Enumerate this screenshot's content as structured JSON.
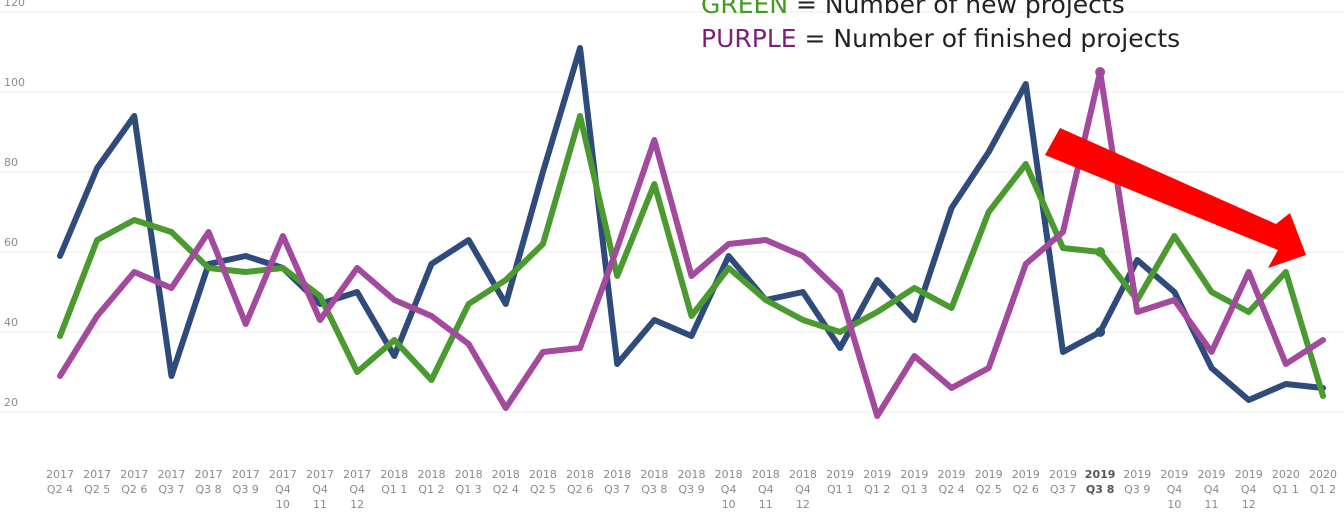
{
  "chart_data": {
    "type": "line",
    "categories": [
      [
        "2017",
        "Q2 4"
      ],
      [
        "2017",
        "Q2 5"
      ],
      [
        "2017",
        "Q2 6"
      ],
      [
        "2017",
        "Q3 7"
      ],
      [
        "2017",
        "Q3 8"
      ],
      [
        "2017",
        "Q3 9"
      ],
      [
        "2017",
        "Q4",
        "10"
      ],
      [
        "2017",
        "Q4",
        "11"
      ],
      [
        "2017",
        "Q4",
        "12"
      ],
      [
        "2018",
        "Q1 1"
      ],
      [
        "2018",
        "Q1 2"
      ],
      [
        "2018",
        "Q1 3"
      ],
      [
        "2018",
        "Q2 4"
      ],
      [
        "2018",
        "Q2 5"
      ],
      [
        "2018",
        "Q2 6"
      ],
      [
        "2018",
        "Q3 7"
      ],
      [
        "2018",
        "Q3 8"
      ],
      [
        "2018",
        "Q3 9"
      ],
      [
        "2018",
        "Q4",
        "10"
      ],
      [
        "2018",
        "Q4",
        "11"
      ],
      [
        "2018",
        "Q4",
        "12"
      ],
      [
        "2019",
        "Q1 1"
      ],
      [
        "2019",
        "Q1 2"
      ],
      [
        "2019",
        "Q1 3"
      ],
      [
        "2019",
        "Q2 4"
      ],
      [
        "2019",
        "Q2 5"
      ],
      [
        "2019",
        "Q2 6"
      ],
      [
        "2019",
        "Q3 7"
      ],
      [
        "2019",
        "Q3 8"
      ],
      [
        "2019",
        "Q3 9"
      ],
      [
        "2019",
        "Q4",
        "10"
      ],
      [
        "2019",
        "Q4",
        "11"
      ],
      [
        "2019",
        "Q4",
        "12"
      ],
      [
        "2020",
        "Q1 1"
      ],
      [
        "2020",
        "Q1 2"
      ]
    ],
    "highlight_category": 28,
    "series": [
      {
        "color": "#2f4b7c",
        "values": [
          59,
          81,
          94,
          29,
          57,
          59,
          56,
          47,
          50,
          34,
          57,
          63,
          47,
          80,
          111,
          32,
          43,
          39,
          59,
          48,
          50,
          36,
          53,
          43,
          71,
          85,
          102,
          35,
          40,
          58,
          50,
          31,
          23,
          27,
          26
        ]
      },
      {
        "color": "#4b9a2f",
        "values": [
          39,
          63,
          68,
          65,
          56,
          55,
          56,
          49,
          30,
          38,
          28,
          47,
          53,
          62,
          94,
          54,
          77,
          44,
          56,
          48,
          43,
          40,
          45,
          51,
          46,
          70,
          82,
          61,
          60,
          48,
          64,
          50,
          45,
          55,
          24
        ]
      },
      {
        "color": "#a34a9e",
        "values": [
          29,
          44,
          55,
          51,
          65,
          42,
          64,
          43,
          56,
          48,
          44,
          37,
          21,
          35,
          36,
          61,
          88,
          54,
          62,
          63,
          59,
          50,
          19,
          34,
          26,
          31,
          57,
          65,
          105,
          45,
          48,
          35,
          55,
          32,
          38
        ]
      }
    ],
    "ylim": [
      20,
      120
    ],
    "yticks": [
      20,
      40,
      60,
      80,
      100,
      120
    ],
    "grid": true,
    "annotations": [
      {
        "key": "GREEN",
        "text": " = Number of new projects",
        "color": "#3f9c1f"
      },
      {
        "key": "PURPLE",
        "text": " = Number of finished projects",
        "color": "#7b1f7b"
      }
    ]
  }
}
